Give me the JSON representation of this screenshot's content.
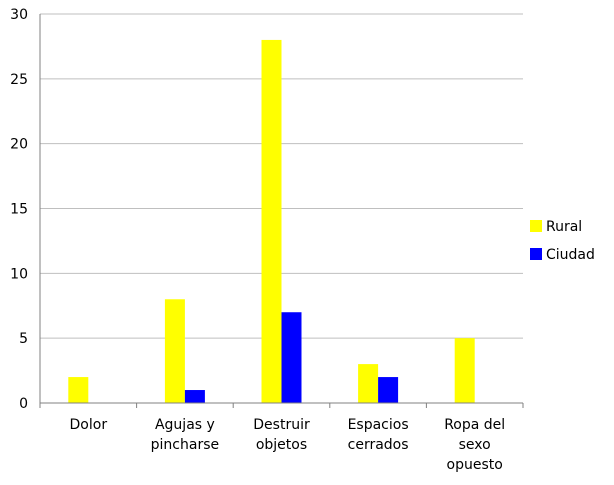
{
  "chart_data": {
    "type": "bar",
    "categories": [
      [
        "Dolor"
      ],
      [
        "Agujas y",
        "pincharse"
      ],
      [
        "Destruir",
        "objetos"
      ],
      [
        "Espacios",
        "cerrados"
      ],
      [
        "Ropa del",
        "sexo",
        "opuesto"
      ]
    ],
    "series": [
      {
        "name": "Rural",
        "color": "#ffff00",
        "values": [
          2,
          8,
          28,
          3,
          5
        ]
      },
      {
        "name": "Ciudad",
        "color": "#0000ff",
        "values": [
          0,
          1,
          7,
          2,
          0
        ]
      }
    ],
    "ylim": [
      0,
      30
    ],
    "yticks": [
      0,
      5,
      10,
      15,
      20,
      25,
      30
    ],
    "grid": true,
    "legend_position": "right"
  }
}
